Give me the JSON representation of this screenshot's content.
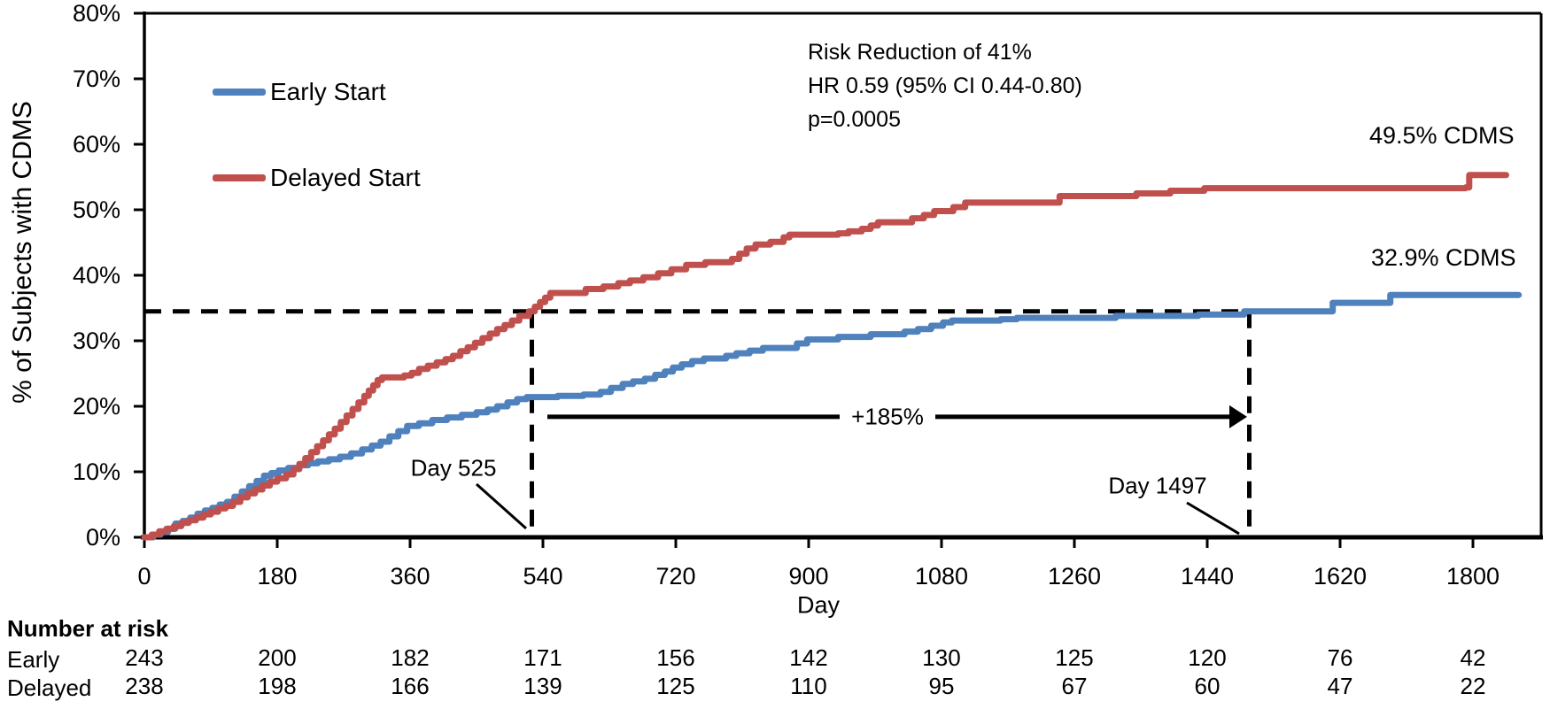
{
  "chart_data": {
    "type": "line",
    "subtype": "kaplan-meier-step",
    "title": "",
    "xlabel": "Day",
    "ylabel": "% of Subjects with CDMS",
    "xlim": [
      0,
      1892
    ],
    "ylim": [
      0,
      80
    ],
    "grid": "off",
    "legend_position": "inside-top-left",
    "x_ticks": [
      0,
      180,
      360,
      540,
      720,
      900,
      1080,
      1260,
      1440,
      1620,
      1800
    ],
    "y_ticks": [
      0,
      10,
      20,
      30,
      40,
      50,
      60,
      70,
      80
    ],
    "y_tick_labels": [
      "0%",
      "10%",
      "20%",
      "30%",
      "40%",
      "50%",
      "60%",
      "70%",
      "80%"
    ],
    "series": [
      {
        "name": "Early Start",
        "color": "#4F81BD",
        "points": [
          [
            0,
            0
          ],
          [
            12,
            0.4
          ],
          [
            22,
            0.8
          ],
          [
            32,
            1.3
          ],
          [
            42,
            2.1
          ],
          [
            52,
            2.5
          ],
          [
            62,
            3.0
          ],
          [
            72,
            3.6
          ],
          [
            82,
            4.1
          ],
          [
            92,
            4.5
          ],
          [
            102,
            5.0
          ],
          [
            112,
            5.4
          ],
          [
            122,
            6.2
          ],
          [
            132,
            7.0
          ],
          [
            142,
            7.8
          ],
          [
            152,
            8.6
          ],
          [
            162,
            9.4
          ],
          [
            172,
            9.8
          ],
          [
            182,
            10.2
          ],
          [
            195,
            10.6
          ],
          [
            210,
            11.0
          ],
          [
            222,
            11.3
          ],
          [
            235,
            11.6
          ],
          [
            250,
            11.9
          ],
          [
            265,
            12.3
          ],
          [
            280,
            12.8
          ],
          [
            295,
            13.4
          ],
          [
            308,
            14.0
          ],
          [
            320,
            14.6
          ],
          [
            332,
            15.4
          ],
          [
            344,
            16.2
          ],
          [
            356,
            17.0
          ],
          [
            372,
            17.4
          ],
          [
            390,
            17.9
          ],
          [
            410,
            18.3
          ],
          [
            430,
            18.7
          ],
          [
            450,
            19.1
          ],
          [
            465,
            19.5
          ],
          [
            478,
            20.0
          ],
          [
            492,
            20.6
          ],
          [
            505,
            21.1
          ],
          [
            518,
            21.4
          ],
          [
            560,
            21.6
          ],
          [
            595,
            21.8
          ],
          [
            618,
            22.2
          ],
          [
            632,
            22.8
          ],
          [
            648,
            23.4
          ],
          [
            662,
            23.8
          ],
          [
            678,
            24.2
          ],
          [
            692,
            24.8
          ],
          [
            705,
            25.3
          ],
          [
            716,
            25.9
          ],
          [
            728,
            26.4
          ],
          [
            742,
            26.9
          ],
          [
            758,
            27.3
          ],
          [
            788,
            27.7
          ],
          [
            802,
            28.1
          ],
          [
            820,
            28.5
          ],
          [
            838,
            28.9
          ],
          [
            884,
            29.6
          ],
          [
            898,
            30.2
          ],
          [
            940,
            30.6
          ],
          [
            984,
            31.0
          ],
          [
            1030,
            31.4
          ],
          [
            1048,
            31.8
          ],
          [
            1066,
            32.3
          ],
          [
            1082,
            32.8
          ],
          [
            1094,
            33.1
          ],
          [
            1160,
            33.3
          ],
          [
            1182,
            33.5
          ],
          [
            1316,
            33.8
          ],
          [
            1428,
            34.0
          ],
          [
            1490,
            34.5
          ],
          [
            1610,
            35.8
          ],
          [
            1688,
            37.0
          ],
          [
            1862,
            37.0
          ]
        ]
      },
      {
        "name": "Delayed Start",
        "color": "#C0504D",
        "points": [
          [
            0,
            0
          ],
          [
            10,
            0.4
          ],
          [
            20,
            0.9
          ],
          [
            30,
            1.3
          ],
          [
            40,
            1.7
          ],
          [
            50,
            2.2
          ],
          [
            60,
            2.6
          ],
          [
            70,
            3.0
          ],
          [
            80,
            3.5
          ],
          [
            90,
            3.9
          ],
          [
            100,
            4.4
          ],
          [
            110,
            4.8
          ],
          [
            120,
            5.4
          ],
          [
            130,
            6.1
          ],
          [
            140,
            6.7
          ],
          [
            150,
            7.3
          ],
          [
            160,
            7.9
          ],
          [
            170,
            8.5
          ],
          [
            180,
            9.0
          ],
          [
            192,
            9.6
          ],
          [
            202,
            10.4
          ],
          [
            210,
            11.2
          ],
          [
            218,
            12.1
          ],
          [
            226,
            13.0
          ],
          [
            234,
            13.9
          ],
          [
            242,
            14.8
          ],
          [
            250,
            15.7
          ],
          [
            258,
            16.6
          ],
          [
            266,
            17.6
          ],
          [
            274,
            18.6
          ],
          [
            282,
            19.6
          ],
          [
            290,
            20.6
          ],
          [
            298,
            21.6
          ],
          [
            304,
            22.4
          ],
          [
            310,
            23.2
          ],
          [
            316,
            24.0
          ],
          [
            322,
            24.4
          ],
          [
            352,
            24.7
          ],
          [
            362,
            25.1
          ],
          [
            372,
            25.7
          ],
          [
            384,
            26.2
          ],
          [
            396,
            26.7
          ],
          [
            408,
            27.2
          ],
          [
            418,
            27.7
          ],
          [
            428,
            28.4
          ],
          [
            438,
            29.0
          ],
          [
            448,
            29.7
          ],
          [
            458,
            30.4
          ],
          [
            468,
            31.1
          ],
          [
            478,
            31.8
          ],
          [
            488,
            32.4
          ],
          [
            498,
            33.1
          ],
          [
            508,
            33.8
          ],
          [
            521,
            34.5
          ],
          [
            529,
            35.2
          ],
          [
            536,
            35.9
          ],
          [
            543,
            36.6
          ],
          [
            550,
            37.3
          ],
          [
            598,
            37.9
          ],
          [
            622,
            38.3
          ],
          [
            642,
            38.8
          ],
          [
            658,
            39.2
          ],
          [
            676,
            39.7
          ],
          [
            696,
            40.3
          ],
          [
            714,
            40.9
          ],
          [
            734,
            41.6
          ],
          [
            760,
            42.0
          ],
          [
            796,
            42.5
          ],
          [
            806,
            43.3
          ],
          [
            816,
            44.1
          ],
          [
            828,
            44.7
          ],
          [
            848,
            45.1
          ],
          [
            866,
            45.8
          ],
          [
            874,
            46.2
          ],
          [
            940,
            46.4
          ],
          [
            954,
            46.7
          ],
          [
            972,
            47.1
          ],
          [
            984,
            47.6
          ],
          [
            994,
            48.1
          ],
          [
            1040,
            48.7
          ],
          [
            1056,
            49.2
          ],
          [
            1070,
            49.8
          ],
          [
            1096,
            50.4
          ],
          [
            1112,
            51.1
          ],
          [
            1240,
            52.1
          ],
          [
            1344,
            52.5
          ],
          [
            1390,
            52.9
          ],
          [
            1436,
            53.3
          ],
          [
            1790,
            53.4
          ],
          [
            1795,
            55.3
          ],
          [
            1845,
            55.3
          ]
        ]
      }
    ],
    "annotations": {
      "stats": [
        "Risk Reduction of 41%",
        "HR 0.59 (95% CI 0.44-0.80)",
        "p=0.0005"
      ],
      "delayed_end_label": "49.5% CDMS",
      "early_end_label": "32.9% CDMS",
      "day525_label": "Day 525",
      "day1497_label": "Day 1497",
      "increase_label": "+185%",
      "reference_pct": 34.5,
      "day525": 525,
      "day1497": 1497,
      "arrow_y_pct": 18.4
    },
    "number_at_risk": {
      "header": "Number at risk",
      "days": [
        0,
        180,
        360,
        540,
        720,
        900,
        1080,
        1260,
        1440,
        1620,
        1800
      ],
      "groups": [
        {
          "label": "Early",
          "values": [
            243,
            200,
            182,
            171,
            156,
            142,
            130,
            125,
            120,
            76,
            42
          ]
        },
        {
          "label": "Delayed",
          "values": [
            238,
            198,
            166,
            139,
            125,
            110,
            95,
            67,
            60,
            47,
            22
          ]
        }
      ]
    },
    "colors": {
      "axis": "#000000",
      "text": "#000000",
      "background": "#ffffff"
    }
  }
}
